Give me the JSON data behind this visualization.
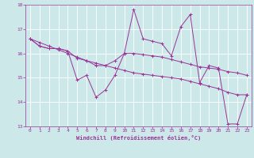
{
  "x": [
    0,
    1,
    2,
    3,
    4,
    5,
    6,
    7,
    8,
    9,
    10,
    11,
    12,
    13,
    14,
    15,
    16,
    17,
    18,
    19,
    20,
    21,
    22,
    23
  ],
  "y_windchill": [
    16.6,
    16.3,
    16.2,
    16.2,
    16.1,
    14.9,
    15.1,
    14.2,
    14.5,
    15.1,
    16.0,
    17.8,
    16.6,
    16.5,
    16.4,
    15.9,
    17.1,
    17.6,
    14.8,
    15.5,
    15.4,
    13.1,
    13.1,
    14.3
  ],
  "y_smooth": [
    16.6,
    16.3,
    16.2,
    16.2,
    16.1,
    15.8,
    15.7,
    15.5,
    15.5,
    15.7,
    16.0,
    16.0,
    15.95,
    15.9,
    15.85,
    15.75,
    15.65,
    15.55,
    15.45,
    15.4,
    15.35,
    15.25,
    15.2,
    15.1
  ],
  "y_trend": [
    16.6,
    16.45,
    16.3,
    16.15,
    16.0,
    15.85,
    15.7,
    15.6,
    15.5,
    15.4,
    15.3,
    15.2,
    15.15,
    15.1,
    15.05,
    15.0,
    14.95,
    14.85,
    14.75,
    14.65,
    14.55,
    14.4,
    14.3,
    14.3
  ],
  "color": "#993399",
  "bg_color": "#cce8e8",
  "xlabel": "Windchill (Refroidissement éolien,°C)",
  "ylim": [
    13,
    18
  ],
  "xlim": [
    -0.5,
    23.5
  ],
  "yticks": [
    13,
    14,
    15,
    16,
    17,
    18
  ],
  "xticks": [
    0,
    1,
    2,
    3,
    4,
    5,
    6,
    7,
    8,
    9,
    10,
    11,
    12,
    13,
    14,
    15,
    16,
    17,
    18,
    19,
    20,
    21,
    22,
    23
  ]
}
